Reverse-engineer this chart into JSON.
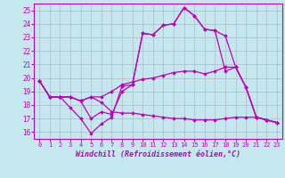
{
  "title": "",
  "xlabel": "Windchill (Refroidissement éolien,°C)",
  "ylabel": "",
  "xlim": [
    -0.5,
    23.5
  ],
  "ylim": [
    15.5,
    25.5
  ],
  "xticks": [
    0,
    1,
    2,
    3,
    4,
    5,
    6,
    7,
    8,
    9,
    10,
    11,
    12,
    13,
    14,
    15,
    16,
    17,
    18,
    19,
    20,
    21,
    22,
    23
  ],
  "yticks": [
    16,
    17,
    18,
    19,
    20,
    21,
    22,
    23,
    24,
    25
  ],
  "background_color": "#c5e8ef",
  "line_color": "#bb00bb",
  "grid_color": "#b0b8cc",
  "lines": [
    [
      19.8,
      18.6,
      18.6,
      17.8,
      17.0,
      15.9,
      16.6,
      17.1,
      19.4,
      19.5,
      23.3,
      23.2,
      23.9,
      24.0,
      25.2,
      24.6,
      23.6,
      23.5,
      23.1,
      20.8,
      19.3,
      17.1,
      16.9,
      16.7
    ],
    [
      19.8,
      18.6,
      18.6,
      18.6,
      18.3,
      17.0,
      17.5,
      17.3,
      19.0,
      19.5,
      23.3,
      23.2,
      23.9,
      24.0,
      25.2,
      24.6,
      23.6,
      23.5,
      20.5,
      20.8,
      19.3,
      17.1,
      16.9,
      16.7
    ],
    [
      19.8,
      18.6,
      18.6,
      18.6,
      18.3,
      18.6,
      18.6,
      19.0,
      19.5,
      19.7,
      19.9,
      20.0,
      20.2,
      20.4,
      20.5,
      20.5,
      20.3,
      20.5,
      20.8,
      20.8,
      19.3,
      17.1,
      16.9,
      16.7
    ],
    [
      19.8,
      18.6,
      18.6,
      18.6,
      18.3,
      18.6,
      18.2,
      17.5,
      17.4,
      17.4,
      17.3,
      17.2,
      17.1,
      17.0,
      17.0,
      16.9,
      16.9,
      16.9,
      17.0,
      17.1,
      17.1,
      17.1,
      16.9,
      16.7
    ]
  ]
}
